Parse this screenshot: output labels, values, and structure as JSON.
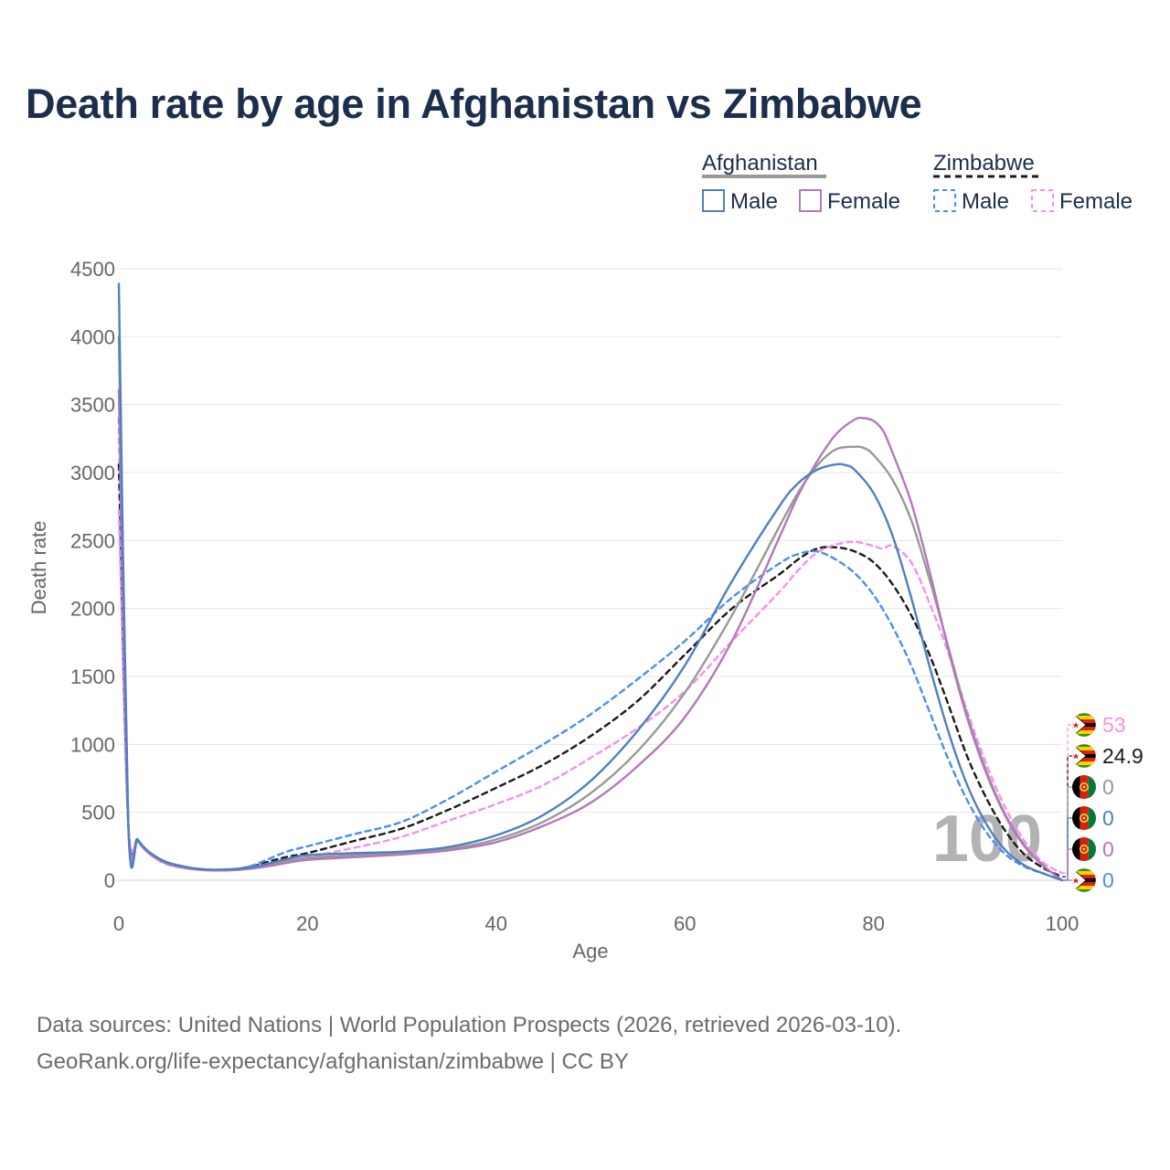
{
  "title": "Death rate by age in Afghanistan vs Zimbabwe",
  "footer": {
    "source": "Data sources: United Nations | World Population Prospects (2026, retrieved 2026-03-10).",
    "credit": "GeoRank.org/life-expectancy/afghanistan/zimbabwe | CC BY"
  },
  "legend": {
    "groups": [
      {
        "country": "Afghanistan",
        "line_style": "solid",
        "line_color": "#999999",
        "items": [
          {
            "label": "Male",
            "color": "#4f7fc0"
          },
          {
            "label": "Female",
            "color": "#b279b8"
          }
        ]
      },
      {
        "country": "Zimbabwe",
        "line_style": "dashed",
        "line_color": "#1a1a1a",
        "items": [
          {
            "label": "Male",
            "color": "#4a8ef0"
          },
          {
            "label": "Female",
            "color": "#f78ff0"
          }
        ]
      }
    ]
  },
  "year_label": "100",
  "end_labels": [
    {
      "country": "Zimbabwe",
      "series": "Zimbabwe Female",
      "value": "53",
      "color": "#f78ff0"
    },
    {
      "country": "Zimbabwe",
      "series": "Zimbabwe Total",
      "value": "24.9",
      "color": "#1a1a1a"
    },
    {
      "country": "Afghanistan",
      "series": "Afghanistan Total",
      "value": "0",
      "color": "#999999"
    },
    {
      "country": "Afghanistan",
      "series": "Afghanistan Male",
      "value": "0",
      "color": "#4f7fc0"
    },
    {
      "country": "Afghanistan",
      "series": "Afghanistan Female",
      "value": "0",
      "color": "#b279b8"
    },
    {
      "country": "Zimbabwe",
      "series": "Zimbabwe Male",
      "value": "0",
      "color": "#4a8ef0"
    }
  ],
  "chart_data": {
    "type": "line",
    "title": "Death rate by age in Afghanistan vs Zimbabwe",
    "xlabel": "Age",
    "ylabel": "Death rate",
    "xlim": [
      0,
      100
    ],
    "ylim": [
      0,
      4500
    ],
    "xticks": [
      0,
      20,
      40,
      60,
      80,
      100
    ],
    "yticks": [
      0,
      500,
      1000,
      1500,
      2000,
      2500,
      3000,
      3500,
      4000,
      4500
    ],
    "grid": true,
    "series": [
      {
        "name": "Afghanistan Total",
        "color": "#999999",
        "dash": "solid",
        "x": [
          0,
          1,
          2,
          3,
          4,
          5,
          6,
          8,
          10,
          12,
          14,
          16,
          18,
          20,
          25,
          30,
          35,
          40,
          45,
          50,
          55,
          60,
          65,
          70,
          72,
          74,
          76,
          78,
          79,
          80,
          82,
          84,
          86,
          88,
          90,
          92,
          94,
          96,
          98,
          100
        ],
        "y": [
          4000,
          420,
          300,
          220,
          170,
          130,
          110,
          85,
          75,
          78,
          90,
          115,
          145,
          165,
          185,
          200,
          230,
          300,
          430,
          640,
          950,
          1380,
          1950,
          2600,
          2850,
          3050,
          3170,
          3190,
          3180,
          3130,
          2950,
          2650,
          2200,
          1700,
          1200,
          800,
          480,
          260,
          110,
          0
        ]
      },
      {
        "name": "Afghanistan Male",
        "color": "#4f7fc0",
        "dash": "solid",
        "x": [
          0,
          1,
          2,
          3,
          4,
          5,
          6,
          8,
          10,
          12,
          14,
          16,
          18,
          20,
          25,
          30,
          35,
          40,
          45,
          50,
          55,
          60,
          65,
          70,
          72,
          74,
          76,
          77,
          78,
          80,
          82,
          84,
          86,
          88,
          90,
          92,
          94,
          96,
          98,
          100
        ],
        "y": [
          4390,
          420,
          300,
          220,
          170,
          135,
          115,
          88,
          78,
          82,
          95,
          125,
          160,
          185,
          200,
          210,
          245,
          330,
          480,
          730,
          1100,
          1580,
          2200,
          2750,
          2920,
          3020,
          3060,
          3055,
          3020,
          2850,
          2540,
          2080,
          1560,
          1080,
          690,
          410,
          220,
          110,
          50,
          0
        ]
      },
      {
        "name": "Afghanistan Female",
        "color": "#b279b8",
        "dash": "solid",
        "x": [
          0,
          1,
          2,
          3,
          4,
          5,
          6,
          8,
          10,
          12,
          14,
          16,
          18,
          20,
          25,
          30,
          35,
          40,
          45,
          50,
          55,
          60,
          65,
          70,
          72,
          74,
          76,
          78,
          79,
          80,
          81,
          82,
          84,
          86,
          88,
          90,
          92,
          94,
          96,
          98,
          100
        ],
        "y": [
          3610,
          420,
          290,
          210,
          165,
          125,
          105,
          80,
          72,
          74,
          85,
          105,
          130,
          150,
          170,
          190,
          220,
          280,
          400,
          570,
          840,
          1200,
          1760,
          2520,
          2830,
          3080,
          3280,
          3390,
          3400,
          3380,
          3310,
          3150,
          2780,
          2260,
          1680,
          1180,
          780,
          470,
          250,
          105,
          0
        ]
      },
      {
        "name": "Zimbabwe Total",
        "color": "#1a1a1a",
        "dash": "dashed",
        "x": [
          0,
          1,
          2,
          3,
          4,
          5,
          6,
          8,
          10,
          12,
          14,
          16,
          18,
          20,
          25,
          30,
          35,
          40,
          45,
          50,
          55,
          60,
          65,
          70,
          72,
          74,
          76,
          78,
          80,
          82,
          84,
          86,
          88,
          90,
          92,
          94,
          96,
          98,
          100
        ],
        "y": [
          3060,
          420,
          300,
          215,
          160,
          125,
          105,
          82,
          75,
          80,
          100,
          140,
          175,
          200,
          290,
          380,
          520,
          680,
          850,
          1060,
          1320,
          1660,
          2000,
          2250,
          2360,
          2440,
          2450,
          2420,
          2340,
          2180,
          1950,
          1650,
          1280,
          900,
          600,
          360,
          190,
          90,
          25
        ]
      },
      {
        "name": "Zimbabwe Male",
        "color": "#4a8ef0",
        "dash": "dashed",
        "x": [
          0,
          1,
          2,
          3,
          4,
          5,
          6,
          8,
          10,
          12,
          14,
          16,
          18,
          20,
          25,
          30,
          35,
          40,
          45,
          50,
          55,
          60,
          65,
          70,
          72,
          74,
          76,
          78,
          80,
          82,
          84,
          86,
          88,
          90,
          92,
          94,
          96,
          98,
          100
        ],
        "y": [
          3400,
          420,
          300,
          215,
          160,
          125,
          105,
          82,
          75,
          80,
          105,
          160,
          215,
          250,
          340,
          430,
          600,
          800,
          1000,
          1220,
          1480,
          1760,
          2080,
          2330,
          2400,
          2420,
          2360,
          2260,
          2100,
          1870,
          1580,
          1230,
          880,
          580,
          350,
          190,
          100,
          50,
          0
        ]
      },
      {
        "name": "Zimbabwe Female",
        "color": "#f78ff0",
        "dash": "dashed",
        "x": [
          0,
          1,
          2,
          3,
          4,
          5,
          6,
          8,
          10,
          12,
          14,
          16,
          18,
          20,
          25,
          30,
          35,
          40,
          45,
          50,
          55,
          60,
          65,
          70,
          72,
          74,
          76,
          78,
          80,
          81,
          82,
          84,
          86,
          88,
          90,
          92,
          94,
          96,
          98,
          100
        ],
        "y": [
          2720,
          420,
          290,
          210,
          155,
          120,
          100,
          80,
          72,
          78,
          95,
          125,
          150,
          170,
          240,
          320,
          440,
          560,
          700,
          900,
          1120,
          1390,
          1760,
          2120,
          2280,
          2410,
          2470,
          2490,
          2460,
          2440,
          2460,
          2340,
          2030,
          1660,
          1230,
          850,
          530,
          290,
          130,
          53
        ]
      }
    ]
  }
}
